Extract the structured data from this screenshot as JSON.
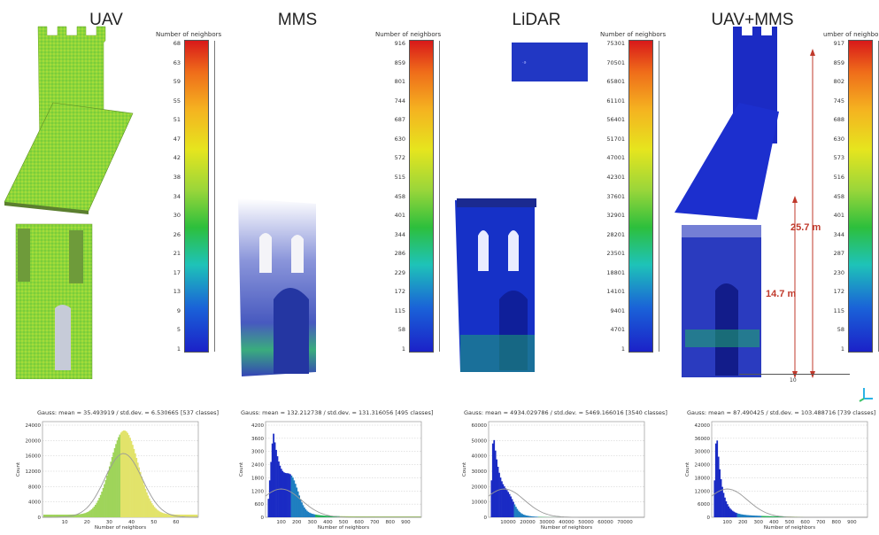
{
  "panels": [
    {
      "title": "UAV",
      "colorbar": {
        "title": "Number of neighbors",
        "ticks": [
          "68",
          "63",
          "59",
          "55",
          "51",
          "47",
          "42",
          "38",
          "34",
          "30",
          "26",
          "21",
          "17",
          "13",
          "9",
          "5",
          "1"
        ]
      },
      "histogram": {
        "caption": "Gauss: mean = 35.493919 / std.dev. = 6.530665 [537 classes]",
        "xlabel": "Number of neighbors",
        "ylabel": "Count",
        "yticks": [
          "24000",
          "20000",
          "16000",
          "12000",
          "8000",
          "4000",
          "0"
        ],
        "xticks": [
          "10",
          "20",
          "30",
          "40",
          "50",
          "60"
        ]
      }
    },
    {
      "title": "MMS",
      "colorbar": {
        "title": "Number of neighbors",
        "ticks": [
          "916",
          "859",
          "801",
          "744",
          "687",
          "630",
          "572",
          "515",
          "458",
          "401",
          "344",
          "286",
          "229",
          "172",
          "115",
          "58",
          "1"
        ]
      },
      "histogram": {
        "caption": "Gauss: mean = 132.212738 / std.dev. = 131.316056 [495 classes]",
        "xlabel": "Number of neighbors",
        "ylabel": "Count",
        "yticks": [
          "4200",
          "3600",
          "3000",
          "2400",
          "1800",
          "1200",
          "600",
          "0"
        ],
        "xticks": [
          "100",
          "200",
          "300",
          "400",
          "500",
          "600",
          "700",
          "800",
          "900"
        ]
      }
    },
    {
      "title": "LiDAR",
      "colorbar": {
        "title": "Number of neighbors",
        "ticks": [
          "75301",
          "70501",
          "65801",
          "61101",
          "56401",
          "51701",
          "47001",
          "42301",
          "37601",
          "32901",
          "28201",
          "23501",
          "18801",
          "14101",
          "9401",
          "4701",
          "1"
        ]
      },
      "histogram": {
        "caption": "Gauss: mean = 4934.029786 / std.dev. = 5469.166016 [3540 classes]",
        "xlabel": "Number of neighbors",
        "ylabel": "Count",
        "yticks": [
          "60000",
          "50000",
          "40000",
          "30000",
          "20000",
          "10000",
          "0"
        ],
        "xticks": [
          "10000",
          "20000",
          "30000",
          "40000",
          "50000",
          "60000",
          "70000"
        ]
      }
    },
    {
      "title": "UAV+MMS",
      "colorbar": {
        "title": "umber of neighbors",
        "ticks": [
          "917",
          "859",
          "802",
          "745",
          "688",
          "630",
          "573",
          "516",
          "458",
          "401",
          "344",
          "287",
          "230",
          "172",
          "115",
          "58",
          "1"
        ]
      },
      "histogram": {
        "caption": "Gauss: mean = 87.490425 / std.dev. = 103.488716 [739 classes]",
        "xlabel": "Number of neighbors",
        "ylabel": "Count",
        "yticks": [
          "42000",
          "36000",
          "30000",
          "24000",
          "18000",
          "12000",
          "6000",
          "0"
        ],
        "xticks": [
          "100",
          "200",
          "300",
          "400",
          "500",
          "600",
          "700",
          "800",
          "900"
        ]
      }
    }
  ],
  "dimensions": {
    "height_total": "25.7 m",
    "height_lower": "14.7 m",
    "scale": "10"
  },
  "colors": {
    "dimension_red": "#c0392b"
  }
}
